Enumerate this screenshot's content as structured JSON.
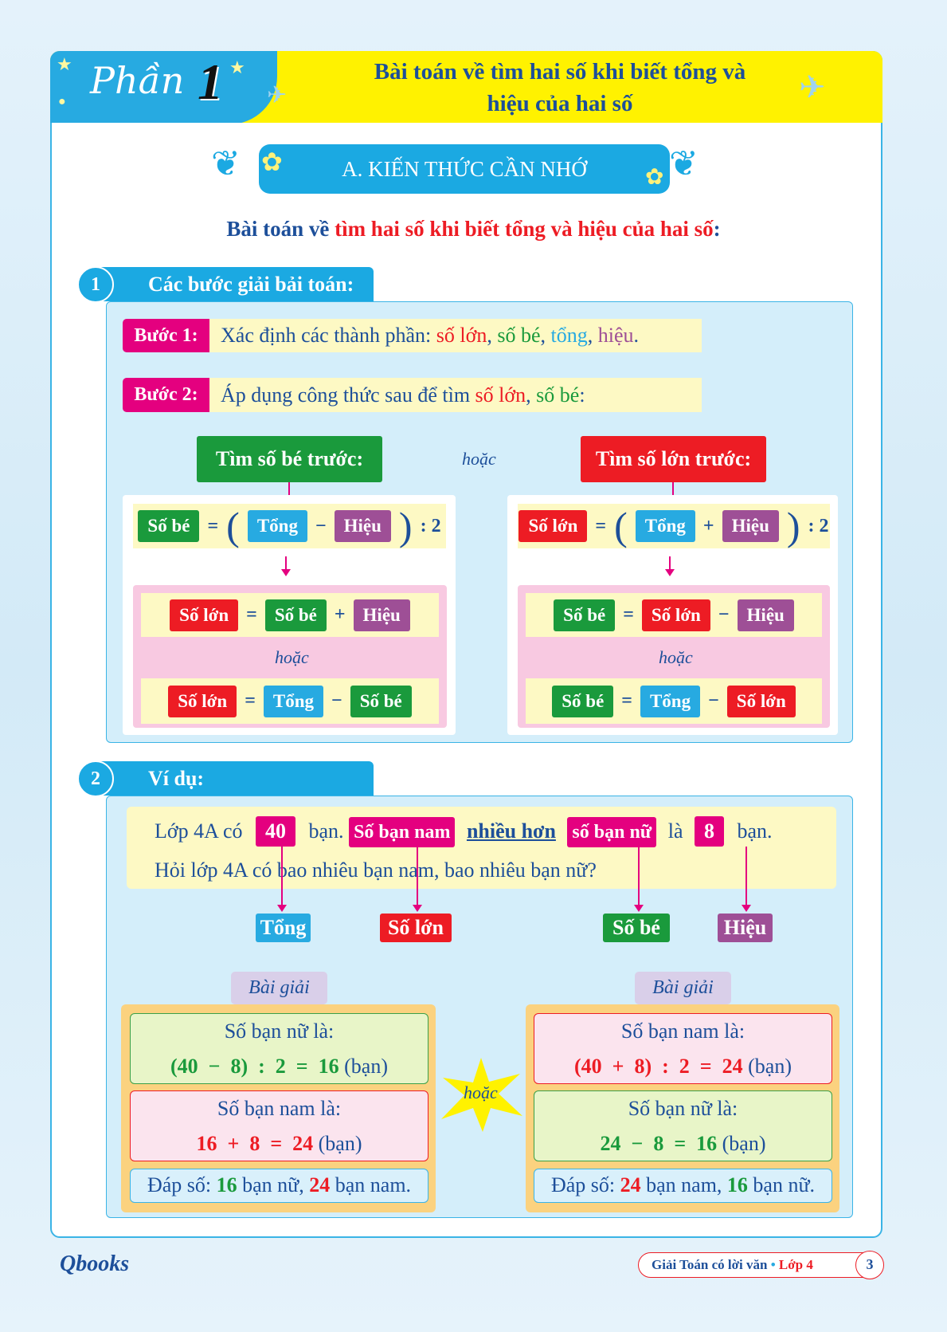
{
  "header": {
    "part_word": "Phần",
    "part_number": "1",
    "title_line1": "Bài toán về tìm hai số khi biết tổng và",
    "title_line2": "hiệu của hai số"
  },
  "section_title": "A. KIẾN THỨC CẦN NHỚ",
  "subtitle": {
    "part1": "Bài toán về ",
    "part2": "tìm hai số khi biết tổng và hiệu của hai số",
    ":": ":"
  },
  "s1": {
    "num": "1",
    "title": "Các bước giải bải toán:",
    "step1": {
      "label": "Bước 1:",
      "text": "Xác định các thành phần: ",
      "a": "số lớn",
      "b": "số bé",
      "c": "tổng",
      "d": "hiệu"
    },
    "step2": {
      "label": "Bước 2:",
      "text": "Áp dụng công thức sau để tìm ",
      "a": "số lớn",
      "b": "số bé"
    },
    "left_head": "Tìm số bé trước:",
    "or": "hoặc",
    "right_head": "Tìm số lớn trước:",
    "terms": {
      "sobe": "Số bé",
      "solon": "Số lớn",
      "tong": "Tổng",
      "hieu": "Hiệu",
      "eq": "=",
      "plus": "+",
      "minus": "−",
      "div": ": 2",
      "lp": "(",
      "rp": ")"
    }
  },
  "s2": {
    "num": "2",
    "title": "Ví dụ:",
    "p1a": "Lớp 4A có",
    "v40": "40",
    "p1b": "bạn.",
    "nam": "Số bạn nam",
    "more": "nhiều hơn",
    "nu": "số bạn nữ",
    "la": "là",
    "v8": "8",
    "p1c": "bạn.",
    "p2": "Hỏi lớp 4A có bao nhiêu bạn nam, bao nhiêu bạn nữ?",
    "labels": [
      "Tổng",
      "Số lớn",
      "Số bé",
      "Hiệu"
    ],
    "bai_giai": "Bài giải",
    "or": "hoặc",
    "left": {
      "q1": "Số bạn nữ là:",
      "e1a": "(40  −  8)  :  2  =  16",
      "unit": "(bạn)",
      "q2": "Số bạn nam là:",
      "e2a": "16  +  8  =  24",
      "ans_pre": "Đáp số: ",
      "ans_a": "16",
      "ans_m": " bạn nữ, ",
      "ans_b": "24",
      "ans_e": " bạn nam."
    },
    "right": {
      "q1": "Số bạn nam là:",
      "e1a": "(40  +  8)  :  2  =  24",
      "unit": "(bạn)",
      "q2": "Số bạn nữ là:",
      "e2a": "24  −  8  =  16",
      "ans_pre": "Đáp số: ",
      "ans_a": "24",
      "ans_m": " bạn nam, ",
      "ans_b": "16",
      "ans_e": " bạn nữ."
    }
  },
  "footer": {
    "logo": "Qbooks",
    "book": "Giải Toán có lời văn",
    "sep": "•",
    "grade": "Lớp 4",
    "page": "3"
  }
}
